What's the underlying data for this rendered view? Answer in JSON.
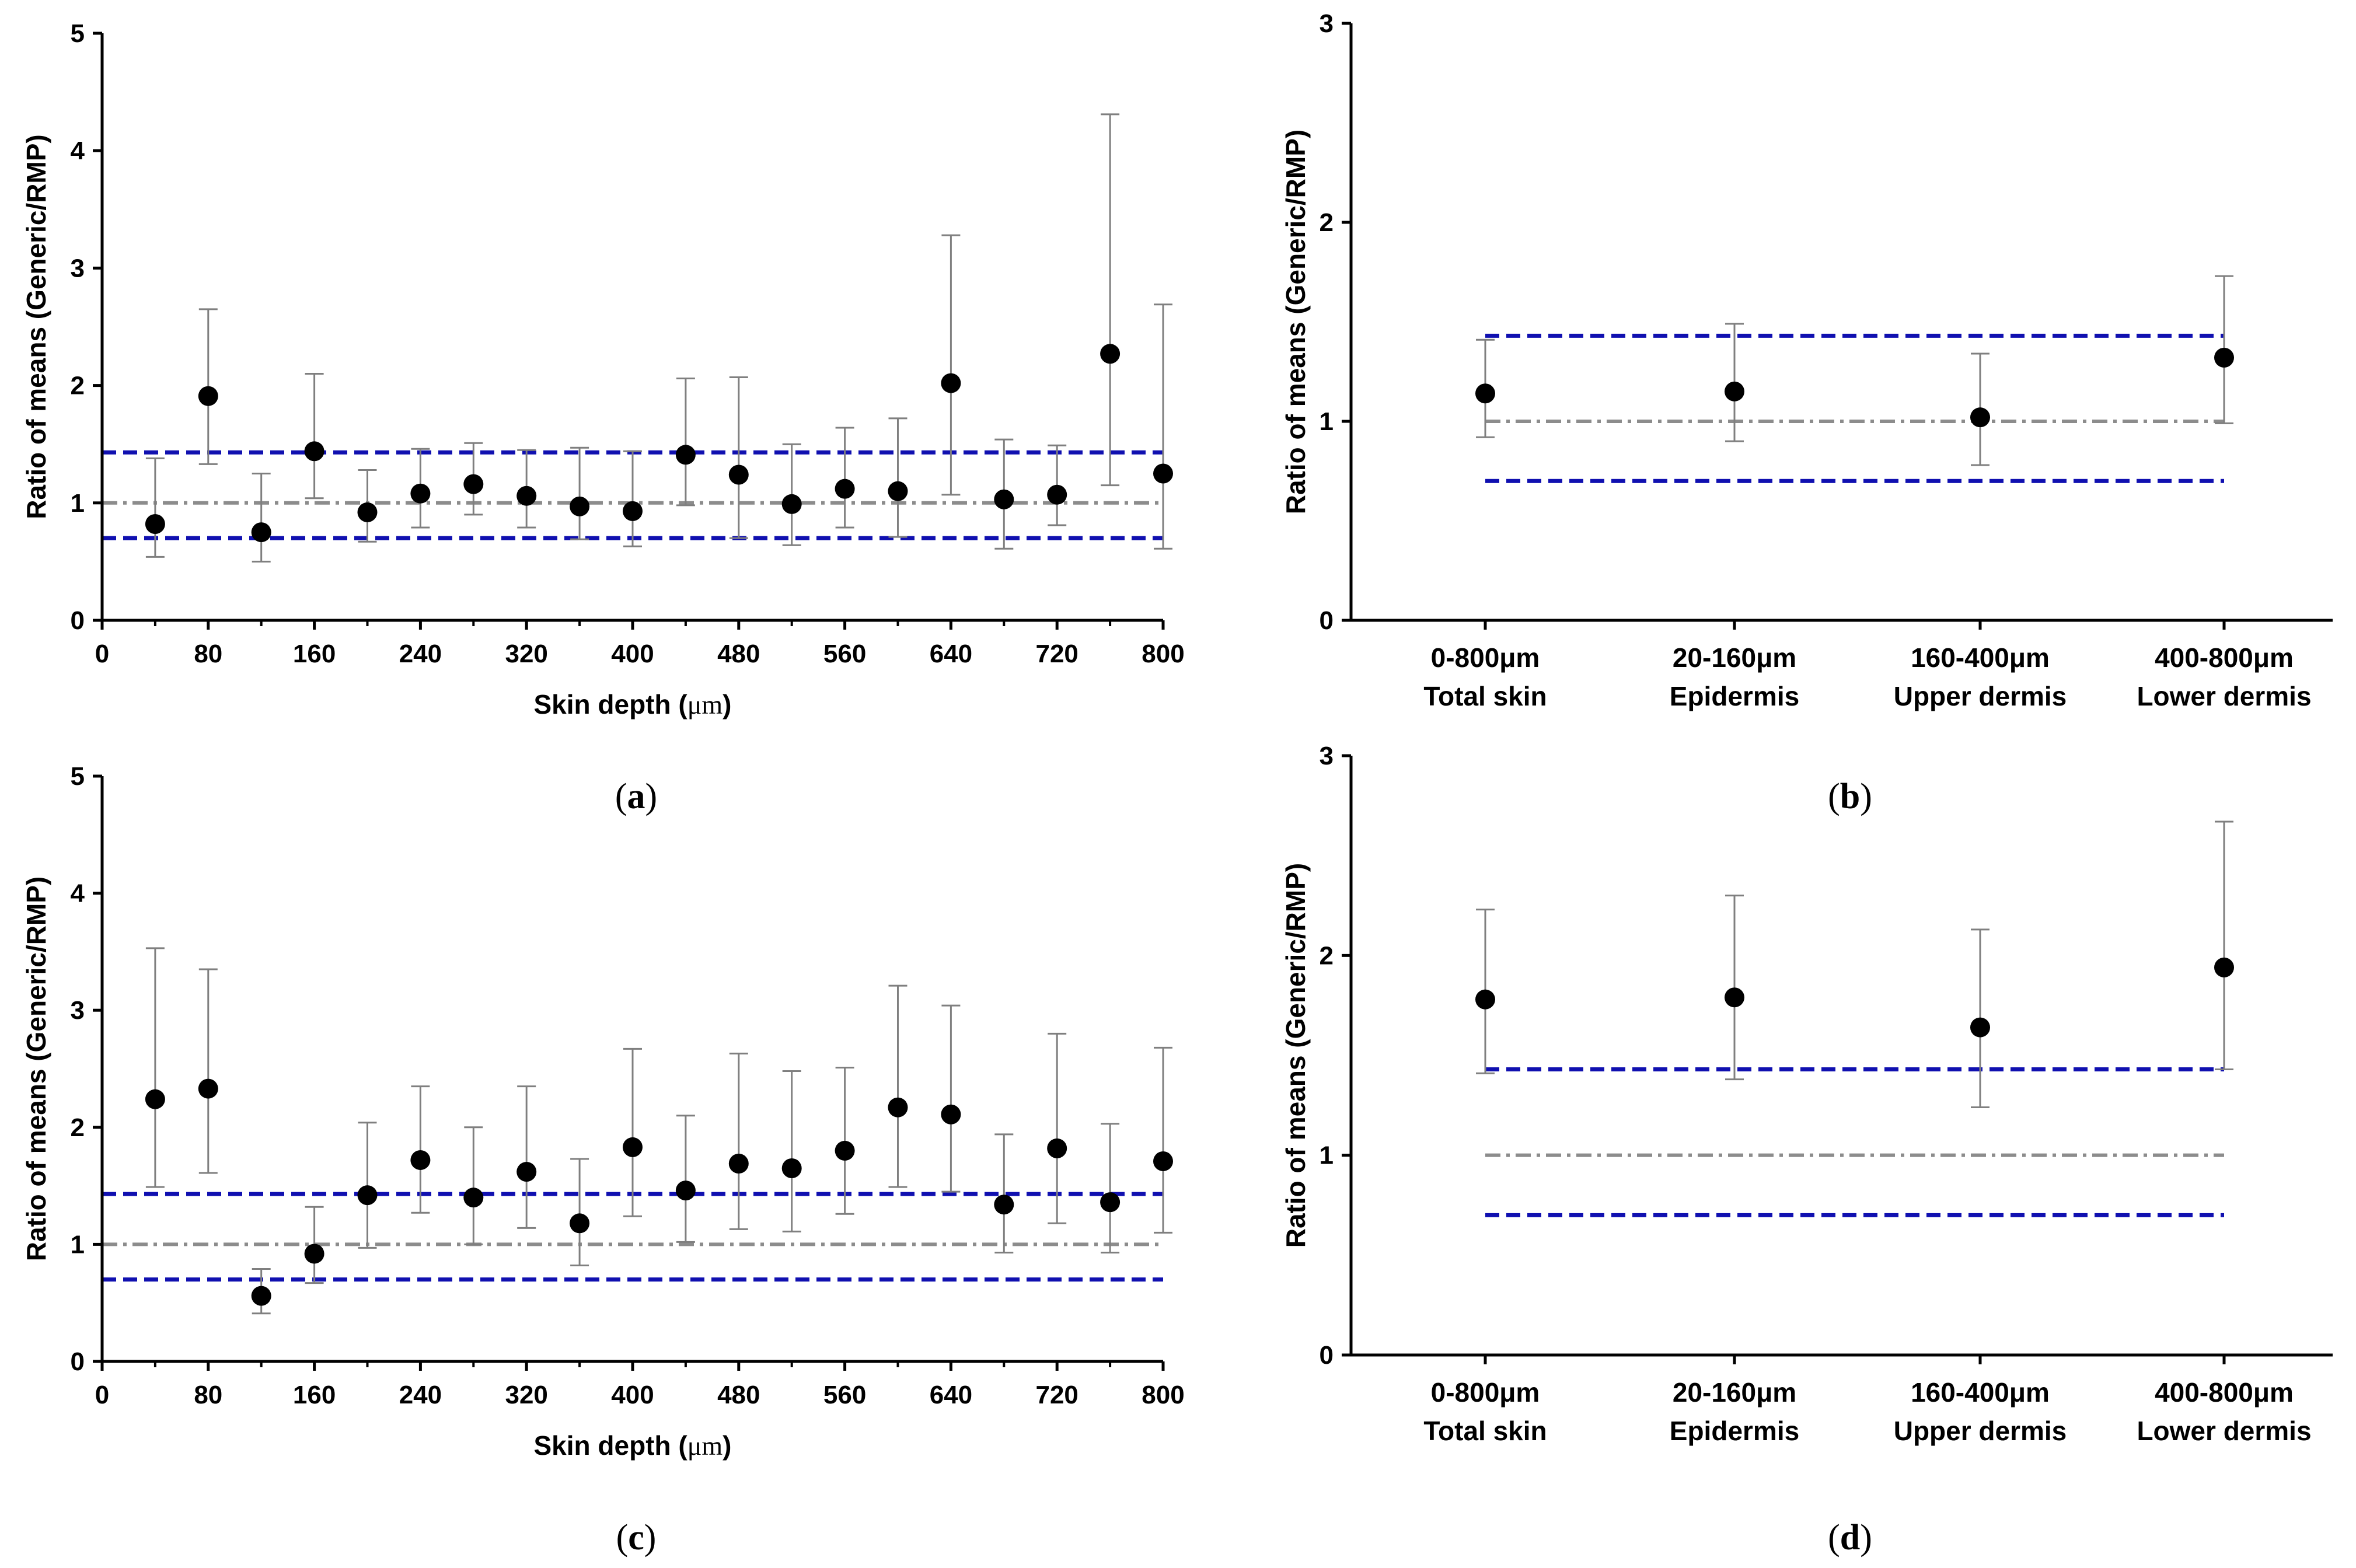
{
  "chart_data": [
    {
      "id": "a",
      "type": "scatter",
      "caption": "a",
      "xlabel": "Skin depth (",
      "xlabel_unit": "μm",
      "xlabel_close": ")",
      "ylabel": "Ratio of means (Generic/RMP)",
      "xlim": [
        0,
        800
      ],
      "ylim": [
        0,
        5
      ],
      "xticks": [
        "0",
        "80",
        "160",
        "240",
        "320",
        "400",
        "480",
        "560",
        "640",
        "720",
        "800"
      ],
      "yticks": [
        "0",
        "1",
        "2",
        "3",
        "4",
        "5"
      ],
      "reference_lines": {
        "upper": 1.43,
        "center": 1.0,
        "lower": 0.7
      },
      "x": [
        40,
        80,
        120,
        160,
        200,
        240,
        280,
        320,
        360,
        400,
        440,
        480,
        520,
        560,
        600,
        640,
        680,
        720,
        760,
        800
      ],
      "y": [
        0.82,
        1.91,
        0.75,
        1.44,
        0.92,
        1.08,
        1.16,
        1.06,
        0.97,
        0.93,
        1.41,
        1.24,
        0.99,
        1.12,
        1.1,
        2.02,
        1.03,
        1.07,
        2.27,
        1.25
      ],
      "err_low": [
        0.54,
        1.33,
        0.5,
        1.04,
        0.67,
        0.79,
        0.9,
        0.79,
        0.69,
        0.63,
        0.98,
        0.7,
        0.64,
        0.79,
        0.71,
        1.07,
        0.61,
        0.81,
        1.15,
        0.61
      ],
      "err_high": [
        1.38,
        2.65,
        1.25,
        2.1,
        1.28,
        1.46,
        1.51,
        1.45,
        1.47,
        1.44,
        2.06,
        2.07,
        1.5,
        1.64,
        1.72,
        3.28,
        1.54,
        1.49,
        4.31,
        2.69
      ]
    },
    {
      "id": "b",
      "type": "scatter",
      "caption": "b",
      "ylabel": "Ratio of means (Generic/RMP)",
      "ylim": [
        0,
        3
      ],
      "yticks": [
        "0",
        "1",
        "2",
        "3"
      ],
      "categories": [
        {
          "range": "0-800μm",
          "region": "Total skin"
        },
        {
          "range": "20-160μm",
          "region": "Epidermis"
        },
        {
          "range": "160-400μm",
          "region": "Upper dermis"
        },
        {
          "range": "400-800μm",
          "region": "Lower dermis"
        }
      ],
      "reference_lines": {
        "upper": 1.43,
        "center": 1.0,
        "lower": 0.7
      },
      "y": [
        1.14,
        1.15,
        1.02,
        1.32
      ],
      "err_low": [
        0.92,
        0.9,
        0.78,
        0.99
      ],
      "err_high": [
        1.41,
        1.49,
        1.34,
        1.73
      ]
    },
    {
      "id": "c",
      "type": "scatter",
      "caption": "c",
      "xlabel": "Skin depth (",
      "xlabel_unit": "μm",
      "xlabel_close": ")",
      "ylabel": "Ratio of means (Generic/RMP)",
      "xlim": [
        0,
        800
      ],
      "ylim": [
        0,
        5
      ],
      "xticks": [
        "0",
        "80",
        "160",
        "240",
        "320",
        "400",
        "480",
        "560",
        "640",
        "720",
        "800"
      ],
      "yticks": [
        "0",
        "1",
        "2",
        "3",
        "4",
        "5"
      ],
      "reference_lines": {
        "upper": 1.43,
        "center": 1.0,
        "lower": 0.7
      },
      "x": [
        40,
        80,
        120,
        160,
        200,
        240,
        280,
        320,
        360,
        400,
        440,
        480,
        520,
        560,
        600,
        640,
        680,
        720,
        760,
        800
      ],
      "y": [
        2.24,
        2.33,
        0.56,
        0.92,
        1.42,
        1.72,
        1.4,
        1.62,
        1.18,
        1.83,
        1.46,
        1.69,
        1.65,
        1.8,
        2.17,
        2.11,
        1.34,
        1.82,
        1.36,
        1.71
      ],
      "err_low": [
        1.49,
        1.61,
        0.41,
        0.67,
        0.97,
        1.27,
        1.0,
        1.14,
        0.82,
        1.24,
        1.02,
        1.13,
        1.11,
        1.26,
        1.49,
        1.45,
        0.93,
        1.18,
        0.93,
        1.1
      ],
      "err_high": [
        3.53,
        3.35,
        0.79,
        1.32,
        2.04,
        2.35,
        2.0,
        2.35,
        1.73,
        2.67,
        2.1,
        2.63,
        2.48,
        2.51,
        3.21,
        3.04,
        1.94,
        2.8,
        2.03,
        2.68
      ]
    },
    {
      "id": "d",
      "type": "scatter",
      "caption": "d",
      "ylabel": "Ratio of means (Generic/RMP)",
      "ylim": [
        0,
        3
      ],
      "yticks": [
        "0",
        "1",
        "2",
        "3"
      ],
      "categories": [
        {
          "range": "0-800μm",
          "region": "Total skin"
        },
        {
          "range": "20-160μm",
          "region": "Epidermis"
        },
        {
          "range": "160-400μm",
          "region": "Upper dermis"
        },
        {
          "range": "400-800μm",
          "region": "Lower dermis"
        }
      ],
      "reference_lines": {
        "upper": 1.43,
        "center": 1.0,
        "lower": 0.7
      },
      "y": [
        1.78,
        1.79,
        1.64,
        1.94
      ],
      "err_low": [
        1.41,
        1.38,
        1.24,
        1.43
      ],
      "err_high": [
        2.23,
        2.3,
        2.13,
        2.67
      ]
    }
  ],
  "colors": {
    "point": "#000000",
    "error_bar": "#7f7f7f",
    "limit_line": "#1010b0",
    "center_line": "#8c8c8c",
    "axis": "#000000"
  }
}
